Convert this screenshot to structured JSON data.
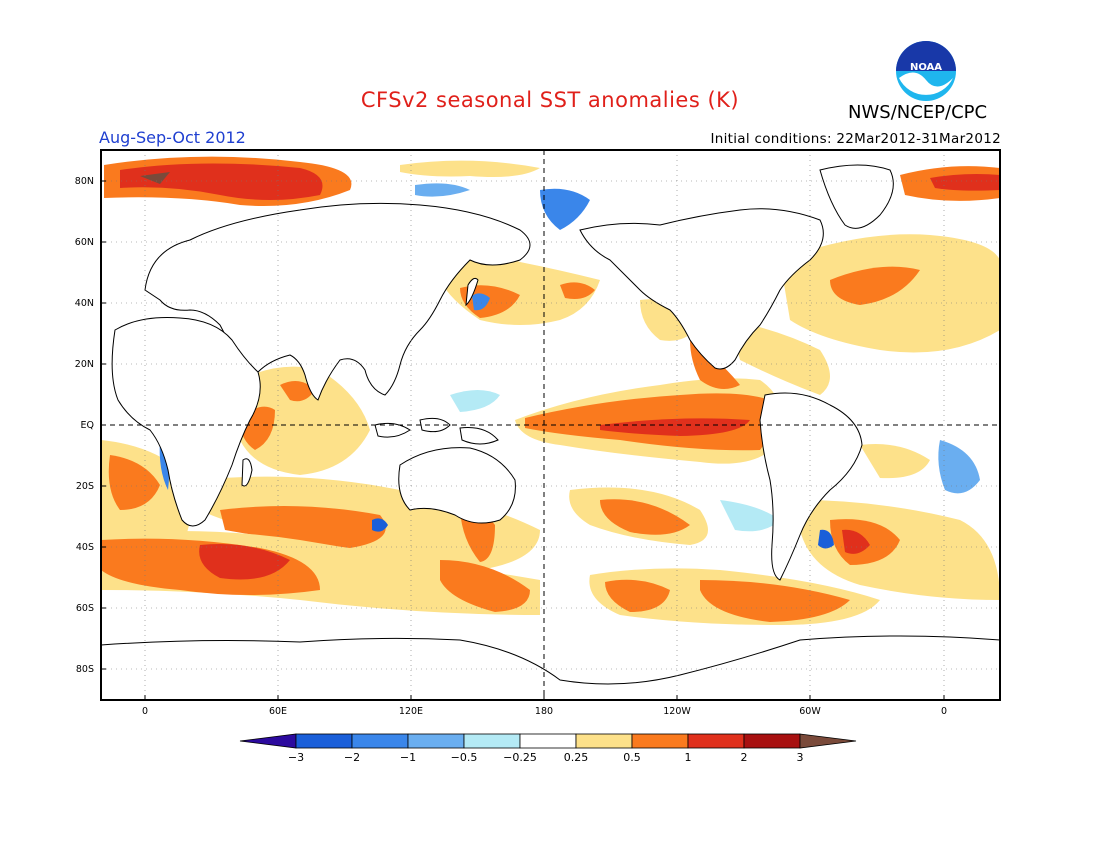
{
  "header": {
    "title": "CFSv2 seasonal SST anomalies (K)",
    "agency": "NWS/NCEP/CPC",
    "logo_text": "NOAA",
    "period": "Aug-Sep-Oct 2012",
    "initial_conditions": "Initial conditions: 22Mar2012-31Mar2012"
  },
  "map": {
    "lat_labels": [
      "80N",
      "60N",
      "40N",
      "20N",
      "EQ",
      "20S",
      "40S",
      "60S",
      "80S"
    ],
    "lon_labels": [
      "0",
      "60E",
      "120E",
      "180",
      "120W",
      "60W",
      "0"
    ],
    "reference_lines": [
      "EQ",
      "180"
    ]
  },
  "colorbar": {
    "tick_labels": [
      "−3",
      "−2",
      "−1",
      "−0.5",
      "−0.25",
      "0.25",
      "0.5",
      "1",
      "2",
      "3"
    ],
    "colors": [
      "#2c0a9e",
      "#1a5fd9",
      "#3a86ea",
      "#6aaef0",
      "#b4eaf5",
      "#ffffff",
      "#fde18a",
      "#fa7a1e",
      "#e0301c",
      "#a81010",
      "#7a4a3a"
    ]
  }
}
